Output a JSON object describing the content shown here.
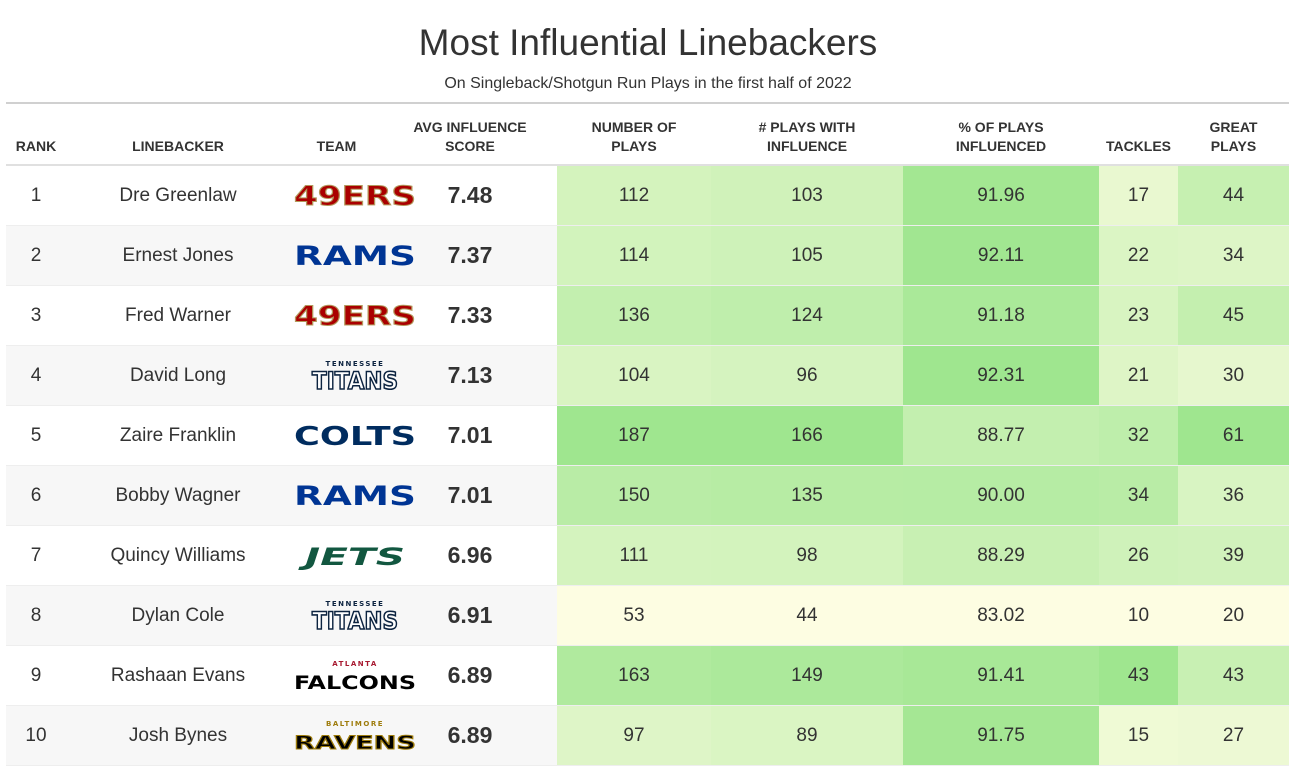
{
  "title": "Most Influential Linebackers",
  "subtitle": "On Singleback/Shotgun Run Plays in the first half of 2022",
  "chart_data": {
    "type": "table",
    "columns": [
      {
        "key": "rank",
        "label": [
          "RANK"
        ]
      },
      {
        "key": "linebacker",
        "label": [
          "LINEBACKER"
        ]
      },
      {
        "key": "team",
        "label": [
          "TEAM"
        ]
      },
      {
        "key": "avg",
        "label": [
          "AVG INFLUENCE",
          "SCORE"
        ]
      },
      {
        "key": "plays",
        "label": [
          "NUMBER OF",
          "PLAYS"
        ]
      },
      {
        "key": "infl",
        "label": [
          "# PLAYS WITH",
          "INFLUENCE"
        ]
      },
      {
        "key": "pct",
        "label": [
          "% OF PLAYS",
          "INFLUENCED"
        ]
      },
      {
        "key": "tackles",
        "label": [
          "TACKLES"
        ]
      },
      {
        "key": "great",
        "label": [
          "GREAT",
          "PLAYS"
        ]
      }
    ],
    "rows": [
      {
        "rank": "1",
        "linebacker": "Dre Greenlaw",
        "team": "49ERS",
        "avg": "7.48",
        "plays": 112,
        "infl": 103,
        "pct": "91.96",
        "tackles": 17,
        "great": 44
      },
      {
        "rank": "2",
        "linebacker": "Ernest Jones",
        "team": "RAMS",
        "avg": "7.37",
        "plays": 114,
        "infl": 105,
        "pct": "92.11",
        "tackles": 22,
        "great": 34
      },
      {
        "rank": "3",
        "linebacker": "Fred Warner",
        "team": "49ERS",
        "avg": "7.33",
        "plays": 136,
        "infl": 124,
        "pct": "91.18",
        "tackles": 23,
        "great": 45
      },
      {
        "rank": "4",
        "linebacker": "David Long",
        "team": "TITANS",
        "avg": "7.13",
        "plays": 104,
        "infl": 96,
        "pct": "92.31",
        "tackles": 21,
        "great": 30
      },
      {
        "rank": "5",
        "linebacker": "Zaire Franklin",
        "team": "COLTS",
        "avg": "7.01",
        "plays": 187,
        "infl": 166,
        "pct": "88.77",
        "tackles": 32,
        "great": 61
      },
      {
        "rank": "6",
        "linebacker": "Bobby Wagner",
        "team": "RAMS",
        "avg": "7.01",
        "plays": 150,
        "infl": 135,
        "pct": "90.00",
        "tackles": 34,
        "great": 36
      },
      {
        "rank": "7",
        "linebacker": "Quincy Williams",
        "team": "JETS",
        "avg": "6.96",
        "plays": 111,
        "infl": 98,
        "pct": "88.29",
        "tackles": 26,
        "great": 39
      },
      {
        "rank": "8",
        "linebacker": "Dylan Cole",
        "team": "TITANS",
        "avg": "6.91",
        "plays": 53,
        "infl": 44,
        "pct": "83.02",
        "tackles": 10,
        "great": 20
      },
      {
        "rank": "9",
        "linebacker": "Rashaan Evans",
        "team": "FALCONS",
        "avg": "6.89",
        "plays": 163,
        "infl": 149,
        "pct": "91.41",
        "tackles": 43,
        "great": 43
      },
      {
        "rank": "10",
        "linebacker": "Josh Bynes",
        "team": "RAVENS",
        "avg": "6.89",
        "plays": 97,
        "infl": 89,
        "pct": "91.75",
        "tackles": 15,
        "great": 27
      }
    ],
    "logos": {
      "49ERS": {
        "text": "49ERS",
        "fill": "#aa0000",
        "stroke": "#b3995d"
      },
      "RAMS": {
        "text": "RAMS",
        "fill": "#003594"
      },
      "TITANS": {
        "text": "TITANS",
        "small": "TENNESSEE",
        "fill": "#ffffff",
        "stroke": "#0c2340"
      },
      "COLTS": {
        "text": "COLTS",
        "fill": "#002c5f"
      },
      "JETS": {
        "text": "JETS",
        "fill": "#125740"
      },
      "FALCONS": {
        "text": "FALCONS",
        "small": "ATLANTA",
        "fill": "#000000",
        "small_fill": "#a71930"
      },
      "RAVENS": {
        "text": "RAVENS",
        "small": "BALTIMORE",
        "fill": "#000000",
        "stroke": "#9e7c0c"
      }
    },
    "heat_colors": {
      "low": "#fdfde2",
      "high": "#9fe68f"
    }
  }
}
